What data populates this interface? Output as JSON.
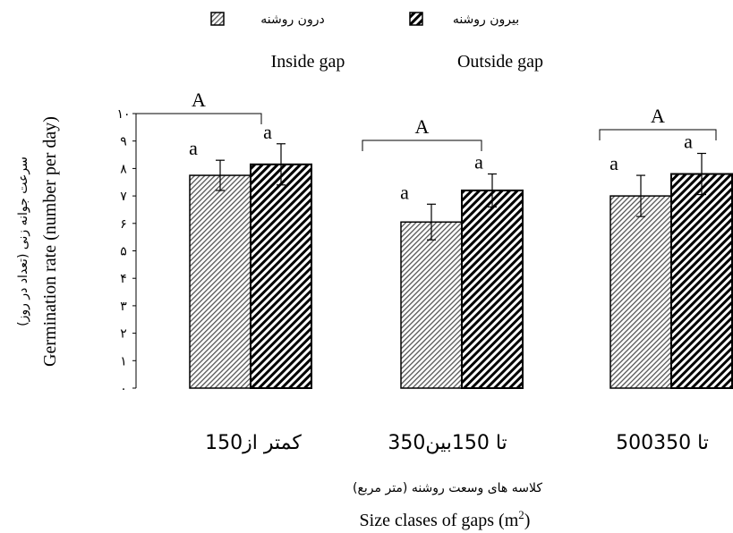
{
  "chart_data": {
    "type": "bar",
    "title": "",
    "legend": {
      "placement": "top",
      "entries": [
        {
          "series": "inside",
          "label_fa": "درون روشنه",
          "label_en": "Inside gap",
          "pattern": "crosshatch-light"
        },
        {
          "series": "outside",
          "label_fa": "بیرون روشنه",
          "label_en": "Outside gap",
          "pattern": "hatch-dense"
        }
      ]
    },
    "ylabel_fa": "سرعت جوانه زنی (تعداد در روز)",
    "ylabel_en": "Germination rate (number per day)",
    "xlabel_fa": "کلاسه های وسعت روشنه (متر مربع)",
    "xlabel_en": "Size clases of gaps (m",
    "xlabel_sup": "2",
    "xlabel_close": ")",
    "ylim": [
      0,
      10
    ],
    "yticks": [
      "۰",
      "۱",
      "۲",
      "۳",
      "۴",
      "۵",
      "۶",
      "۷",
      "۸",
      "۹",
      "۱۰"
    ],
    "categories": [
      "150کمتر از",
      "350تا 150بین",
      "500تا 350"
    ],
    "series": [
      {
        "key": "inside",
        "values": [
          7.75,
          6.05,
          7.0
        ],
        "errors": [
          0.55,
          0.65,
          0.75
        ],
        "labels": [
          "a",
          "a",
          "a"
        ]
      },
      {
        "key": "outside",
        "values": [
          8.15,
          7.2,
          7.8
        ],
        "errors": [
          0.75,
          0.6,
          0.75
        ],
        "labels": [
          "a",
          "a",
          "a"
        ]
      }
    ],
    "group_labels": [
      "A",
      "A",
      "A"
    ],
    "grid": false,
    "colors": {
      "bar_stroke": "#000000",
      "hatch": "#000000",
      "background": "#ffffff"
    }
  }
}
